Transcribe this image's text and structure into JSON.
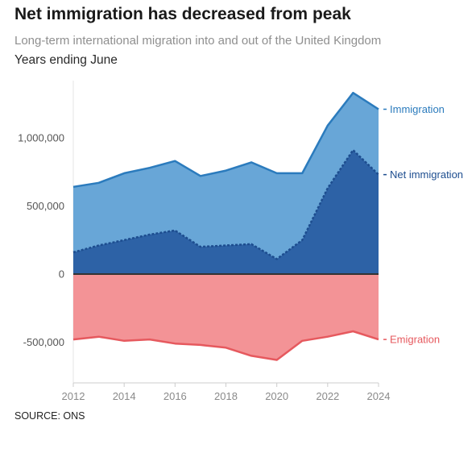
{
  "title": "Net immigration has decreased from peak",
  "subtitle": "Long-term international migration into and out of the United Kingdom",
  "period_note": "Years ending June",
  "source": "SOURCE: ONS",
  "colors": {
    "immigration_fill": "#68a6d7",
    "immigration_line": "#2b7bbd",
    "net_fill": "#2d62a6",
    "net_line": "#1d4d8f",
    "emigration_fill": "#f39396",
    "emigration_line": "#e6595e",
    "zero_line": "#333333",
    "grid": "#e4e4e4"
  },
  "chart_data": {
    "type": "area",
    "x": [
      2012,
      2013,
      2014,
      2015,
      2016,
      2017,
      2018,
      2019,
      2020,
      2021,
      2022,
      2023,
      2024
    ],
    "x_ticks": [
      "2012",
      "2014",
      "2016",
      "2018",
      "2020",
      "2022",
      "2024"
    ],
    "y_ticks": [
      {
        "value": 1000000,
        "label": "1,000,000"
      },
      {
        "value": 500000,
        "label": "500,000"
      },
      {
        "value": 0,
        "label": "0"
      },
      {
        "value": -500000,
        "label": "-500,000"
      }
    ],
    "ylim": [
      -800000,
      1400000
    ],
    "grid": false,
    "series": [
      {
        "name": "Immigration",
        "values": [
          640000,
          670000,
          740000,
          780000,
          830000,
          720000,
          760000,
          820000,
          740000,
          740000,
          1090000,
          1330000,
          1210000
        ]
      },
      {
        "name": "Net immigration",
        "values": [
          160000,
          210000,
          250000,
          290000,
          320000,
          200000,
          210000,
          220000,
          110000,
          250000,
          630000,
          910000,
          730000
        ]
      },
      {
        "name": "Emigration",
        "values": [
          -480000,
          -460000,
          -490000,
          -480000,
          -510000,
          -520000,
          -540000,
          -600000,
          -630000,
          -490000,
          -460000,
          -420000,
          -480000
        ]
      }
    ]
  }
}
